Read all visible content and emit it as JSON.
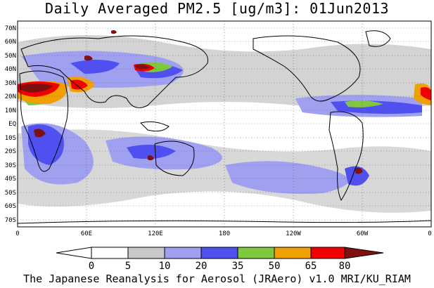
{
  "title": "Daily Averaged PM2.5 [ug/m3]: 01Jun2013",
  "footer": "The Japanese Reanalysis for Aerosol (JRAero) v1.0 MRI/KU_RIAM",
  "lat_labels": [
    "70N",
    "60N",
    "50N",
    "40N",
    "30N",
    "20N",
    "10N",
    "EQ",
    "10S",
    "20S",
    "30S",
    "40S",
    "50S",
    "60S",
    "70S"
  ],
  "lon_labels": [
    "0",
    "60E",
    "120E",
    "180",
    "120W",
    "60W",
    "0"
  ],
  "colorbar": {
    "labels": [
      "0",
      "5",
      "10",
      "20",
      "35",
      "50",
      "65",
      "80"
    ],
    "colors": [
      "#ffffff",
      "#c8c8c8",
      "#a0a0f0",
      "#5050f0",
      "#80c840",
      "#f0a000",
      "#f00000",
      "#801010"
    ]
  },
  "chart_data": {
    "type": "heatmap",
    "title": "Daily Averaged PM2.5 [ug/m3]: 01Jun2013",
    "levels": [
      0,
      5,
      10,
      20,
      35,
      50,
      65,
      80
    ],
    "lat_range": [
      -75,
      75
    ],
    "lon_range": [
      0,
      360
    ]
  }
}
